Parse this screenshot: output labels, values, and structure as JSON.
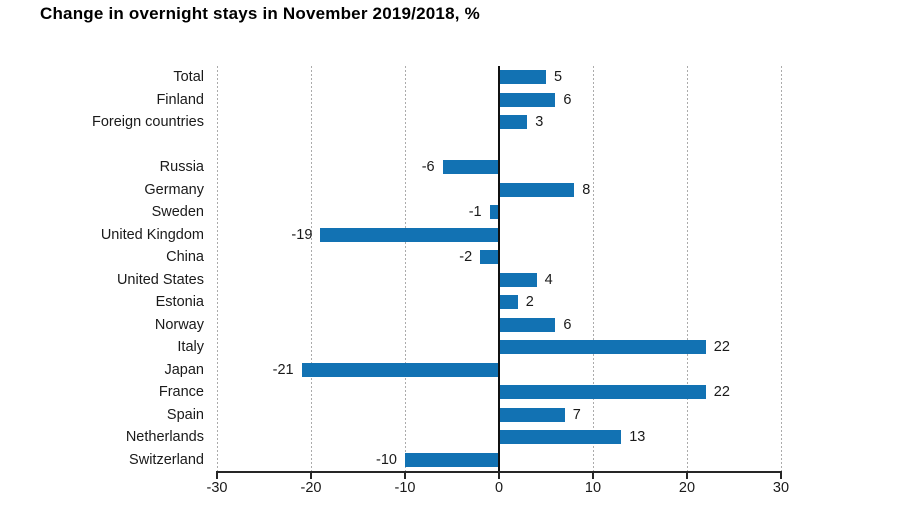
{
  "chart_data": {
    "type": "bar",
    "orientation": "horizontal",
    "title": "Change in overnight stays in November 2019/2018, %",
    "categories": [
      "Total",
      "Finland",
      "Foreign countries",
      "Russia",
      "Germany",
      "Sweden",
      "United Kingdom",
      "China",
      "United States",
      "Estonia",
      "Norway",
      "Italy",
      "Japan",
      "France",
      "Spain",
      "Netherlands",
      "Switzerland"
    ],
    "values": [
      5,
      6,
      3,
      -6,
      8,
      -1,
      -19,
      -2,
      4,
      2,
      6,
      22,
      -21,
      22,
      7,
      13,
      -10
    ],
    "group_break_after": "Foreign countries",
    "xlim": [
      -30,
      30
    ],
    "xticks": [
      -30,
      -20,
      -10,
      0,
      10,
      20,
      30
    ],
    "value_labels_shown": true,
    "legend": "none",
    "grid": "vertical-dashed",
    "colors": {
      "bar": "#1272b3",
      "zero_line": "#111111",
      "axis": "#262626",
      "gridline": "#ababab",
      "text": "#1a1a1a",
      "title_text": "#000000",
      "background": "#ffffff"
    }
  }
}
